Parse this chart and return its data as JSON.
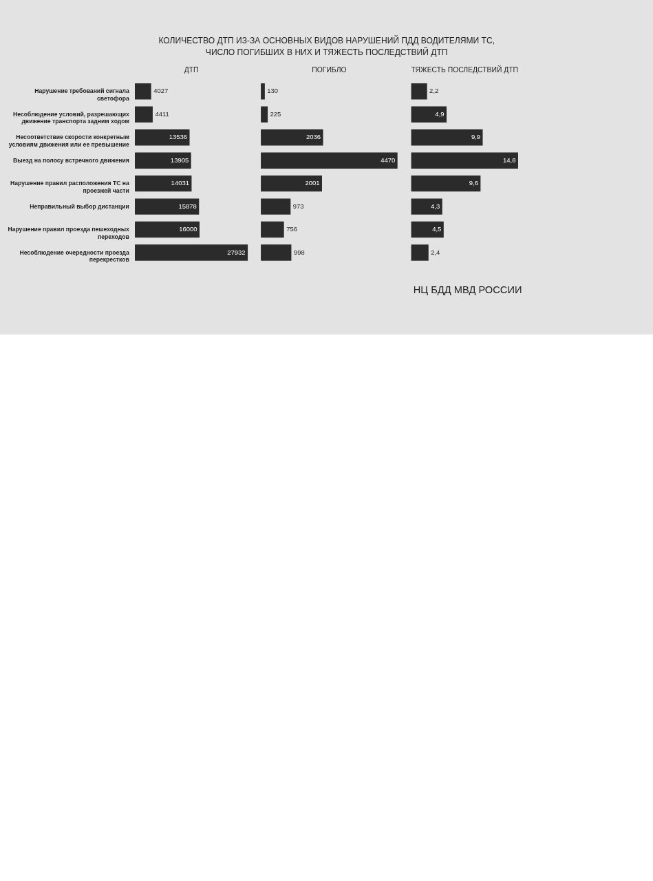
{
  "chart_data": [
    {
      "type": "bar",
      "orientation": "horizontal",
      "title": "КОЛИЧЕСТВО ДТП ИЗ-ЗА ОСНОВНЫХ ВИДОВ НАРУШЕНИЙ ПДД ВОДИТЕЛЯМИ ТС, ЧИСЛО ПОГИБШИХ В НИХ И ТЯЖЕСТЬ ПОСЛЕДСТВИЙ ДТП",
      "categories": [
        "Нарушение требований сигнала светофора",
        "Несоблюдение условий, разрешающих движение транспорта задним ходом",
        "Несоответствие скорости конкретным условиям движения или ее превышение",
        "Выезд на полосу встречного движения",
        "Нарушение правил расположения ТС на проезжей части",
        "Неправильный выбор дистанции",
        "Нарушение правил проезда пешеходных переходов",
        "Несоблюдение очередности проезда перекрестков"
      ],
      "series": [
        {
          "name": "ДТП",
          "color": "#2b2b2b",
          "values": [
            4027,
            4411,
            13536,
            13905,
            14031,
            15878,
            16000,
            27932
          ],
          "value_labels": [
            "4027",
            "4411",
            "13536",
            "13905",
            "14031",
            "15878",
            "16000",
            "27932"
          ]
        }
      ],
      "annotations": [
        "НЦ БДД МВД РОССИИ"
      ]
    },
    {
      "type": "bar",
      "orientation": "horizontal",
      "categories": [
        null,
        null,
        null,
        null,
        null,
        null,
        null,
        null
      ],
      "series": [
        {
          "name": "ПОГИБЛО",
          "color": "#2b2b2b",
          "values": [
            130,
            225,
            2036,
            4470,
            2001,
            973,
            756,
            998
          ],
          "value_labels": [
            "130",
            "225",
            "2036",
            "4470",
            "2001",
            "973",
            "756",
            "998"
          ]
        }
      ]
    },
    {
      "type": "bar",
      "orientation": "horizontal",
      "categories": [
        null,
        null,
        null,
        null,
        null,
        null,
        null,
        null
      ],
      "series": [
        {
          "name": "ТЯЖЕСТЬ ПОСЛЕДСТВИЙ ДТП",
          "color": "#2b2b2b",
          "values": [
            2.2,
            4.9,
            9.9,
            14.8,
            9.6,
            4.3,
            4.5,
            2.4
          ],
          "value_labels": [
            "2,2",
            "4,9",
            "9,9",
            "14,8",
            "9,6",
            "4,3",
            "4,5",
            "2,4"
          ]
        }
      ]
    }
  ]
}
